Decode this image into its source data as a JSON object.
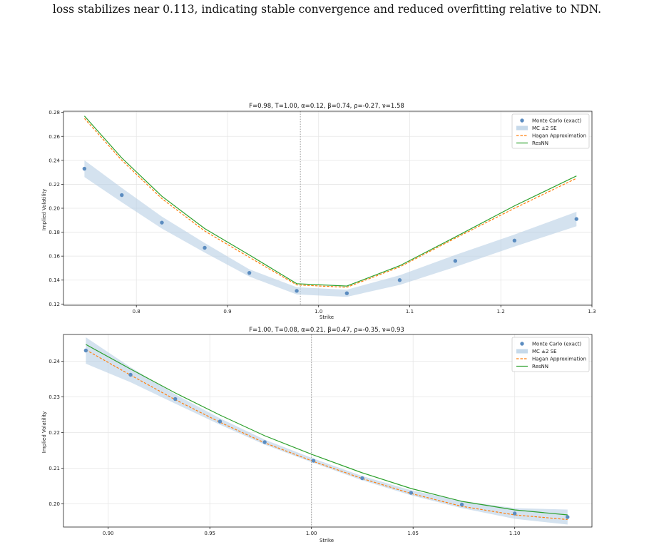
{
  "caption": "loss stabilizes near 0.113, indicating stable convergence and reduced overfitting relative to NDN.",
  "colors": {
    "mc": "#5b8cc0",
    "band": "#b8cfe5",
    "hagan": "#ff7f0e",
    "resnn": "#2ca02c",
    "grid": "#e6e6e6",
    "vline": "#a0a0a0"
  },
  "chart_data": [
    {
      "type": "line",
      "title": "F=0.98, T=1.00, α=0.12, β=0.74, ρ=-0.27, ν=1.58",
      "xlabel": "Strike",
      "ylabel": "Implied Volatility",
      "xlim": [
        0.72,
        1.3
      ],
      "ylim": [
        0.119,
        0.281
      ],
      "xticks": [
        0.8,
        0.9,
        1.0,
        1.1,
        1.2,
        1.3
      ],
      "xtick_labels": [
        "0.8",
        "0.9",
        "1.0",
        "1.1",
        "1.2",
        "1.3"
      ],
      "yticks": [
        0.12,
        0.14,
        0.16,
        0.18,
        0.2,
        0.22,
        0.24,
        0.26,
        0.28
      ],
      "ytick_labels": [
        "0.12",
        "0.14",
        "0.16",
        "0.18",
        "0.20",
        "0.22",
        "0.24",
        "0.26",
        "0.28"
      ],
      "vline_x": 0.98,
      "grid": true,
      "legend_position": "top-right",
      "legend": [
        "Monte Carlo (exact)",
        "MC ±2 SE",
        "Hagan Approximation",
        "ResNN"
      ],
      "x": [
        0.743,
        0.784,
        0.828,
        0.875,
        0.924,
        0.976,
        1.031,
        1.089,
        1.15,
        1.215,
        1.283
      ],
      "series": [
        {
          "name": "Monte Carlo (exact)",
          "values": [
            0.233,
            0.211,
            0.188,
            0.167,
            0.146,
            0.131,
            0.129,
            0.14,
            0.156,
            0.173,
            0.191
          ]
        },
        {
          "name": "MC ±2 SE",
          "lower": [
            0.226,
            0.205,
            0.183,
            0.163,
            0.143,
            0.128,
            0.126,
            0.136,
            0.151,
            0.168,
            0.185
          ],
          "upper": [
            0.24,
            0.217,
            0.193,
            0.171,
            0.149,
            0.134,
            0.132,
            0.144,
            0.161,
            0.178,
            0.197
          ]
        },
        {
          "name": "Hagan Approximation",
          "values": [
            0.275,
            0.24,
            0.208,
            0.181,
            0.159,
            0.136,
            0.134,
            0.151,
            0.175,
            0.2,
            0.225
          ]
        },
        {
          "name": "ResNN",
          "values": [
            0.277,
            0.242,
            0.21,
            0.183,
            0.161,
            0.137,
            0.135,
            0.152,
            0.176,
            0.202,
            0.227
          ]
        }
      ]
    },
    {
      "type": "line",
      "title": "F=1.00, T=0.08, α=0.21, β=0.47, ρ=-0.35, ν=0.93",
      "xlabel": "Strike",
      "ylabel": "Implied Volatility",
      "xlim": [
        0.878,
        1.138
      ],
      "ylim": [
        0.1935,
        0.2475
      ],
      "xticks": [
        0.9,
        0.95,
        1.0,
        1.05,
        1.1
      ],
      "xtick_labels": [
        "0.90",
        "0.95",
        "1.00",
        "1.05",
        "1.10"
      ],
      "yticks": [
        0.2,
        0.21,
        0.22,
        0.23,
        0.24
      ],
      "ytick_labels": [
        "0.20",
        "0.21",
        "0.22",
        "0.23",
        "0.24"
      ],
      "vline_x": 1.0,
      "grid": true,
      "legend_position": "top-right",
      "legend": [
        "Monte Carlo (exact)",
        "MC ±2 SE",
        "Hagan Approximation",
        "ResNN"
      ],
      "x": [
        0.889,
        0.911,
        0.933,
        0.955,
        0.977,
        1.001,
        1.025,
        1.049,
        1.074,
        1.1,
        1.126
      ],
      "series": [
        {
          "name": "Monte Carlo (exact)",
          "values": [
            0.243,
            0.2362,
            0.2294,
            0.2231,
            0.2173,
            0.2121,
            0.2072,
            0.2031,
            0.1998,
            0.1973,
            0.1963
          ]
        },
        {
          "name": "MC ±2 SE",
          "lower": [
            0.2393,
            0.2341,
            0.2281,
            0.2222,
            0.2166,
            0.2115,
            0.2066,
            0.2024,
            0.1988,
            0.1958,
            0.1942
          ],
          "upper": [
            0.2467,
            0.2383,
            0.2307,
            0.224,
            0.218,
            0.2127,
            0.2078,
            0.2038,
            0.2008,
            0.1988,
            0.1984
          ]
        },
        {
          "name": "Hagan Approximation",
          "values": [
            0.2432,
            0.2361,
            0.2292,
            0.2229,
            0.2171,
            0.2119,
            0.2071,
            0.2029,
            0.1993,
            0.1969,
            0.1956
          ]
        },
        {
          "name": "ResNN",
          "values": [
            0.2447,
            0.2378,
            0.2311,
            0.2249,
            0.2191,
            0.2137,
            0.2087,
            0.2043,
            0.2007,
            0.1983,
            0.1969
          ]
        }
      ]
    }
  ]
}
